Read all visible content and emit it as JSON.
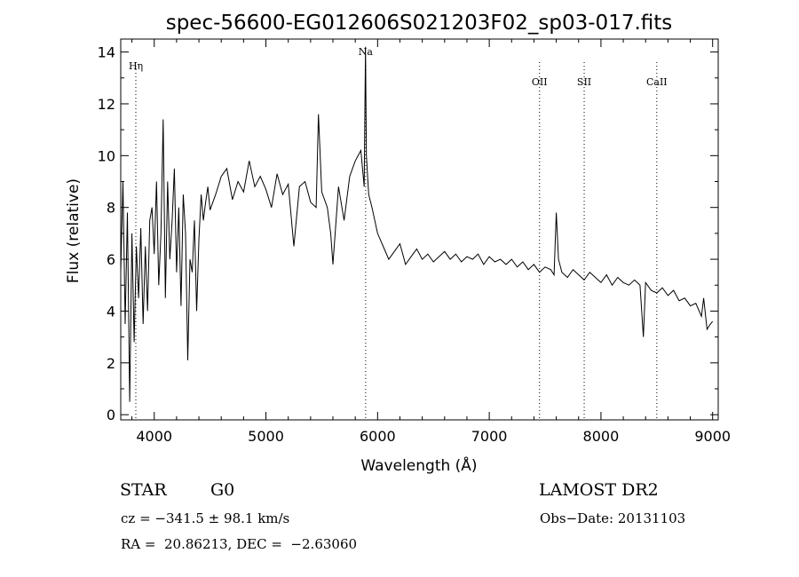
{
  "chart_data": {
    "type": "line",
    "title": "spec-56600-EG012606S021203F02_sp03-017.fits",
    "xlabel": "Wavelength (Å)",
    "ylabel": "Flux (relative)",
    "xlim": [
      3700,
      9050
    ],
    "ylim": [
      -0.2,
      14.5
    ],
    "xticks": [
      4000,
      5000,
      6000,
      7000,
      8000,
      9000
    ],
    "yticks": [
      0,
      2,
      4,
      6,
      8,
      10,
      12,
      14
    ],
    "grid": false,
    "series": [
      {
        "x": [
          3700,
          3720,
          3740,
          3760,
          3780,
          3800,
          3820,
          3840,
          3860,
          3880,
          3900,
          3920,
          3940,
          3960,
          3980,
          4000,
          4020,
          4040,
          4060,
          4080,
          4100,
          4120,
          4140,
          4160,
          4180,
          4200,
          4220,
          4240,
          4260,
          4280,
          4300,
          4320,
          4340,
          4360,
          4380,
          4400,
          4420,
          4440,
          4460,
          4480,
          4500,
          4550,
          4600,
          4650,
          4700,
          4750,
          4800,
          4850,
          4900,
          4950,
          5000,
          5050,
          5100,
          5150,
          5200,
          5250,
          5300,
          5350,
          5400,
          5450,
          5470,
          5500,
          5550,
          5580,
          5600,
          5650,
          5700,
          5750,
          5800,
          5850,
          5880,
          5892,
          5900,
          5920,
          5950,
          6000,
          6050,
          6100,
          6150,
          6200,
          6250,
          6300,
          6350,
          6400,
          6450,
          6500,
          6550,
          6600,
          6650,
          6700,
          6750,
          6800,
          6850,
          6900,
          6950,
          7000,
          7050,
          7100,
          7150,
          7200,
          7250,
          7300,
          7350,
          7400,
          7450,
          7500,
          7550,
          7580,
          7600,
          7620,
          7650,
          7700,
          7750,
          7800,
          7850,
          7900,
          7950,
          8000,
          8050,
          8100,
          8150,
          8200,
          8250,
          8300,
          8350,
          8380,
          8400,
          8450,
          8500,
          8550,
          8600,
          8650,
          8700,
          8750,
          8800,
          8850,
          8900,
          8920,
          8950,
          8980,
          9000
        ],
        "y": [
          5.5,
          9.0,
          3.5,
          7.8,
          0.5,
          7.0,
          2.8,
          6.5,
          4.5,
          7.2,
          3.5,
          6.5,
          4.0,
          7.5,
          8.0,
          6.2,
          9.0,
          5.0,
          7.0,
          11.4,
          4.5,
          9.0,
          6.0,
          7.5,
          9.5,
          5.5,
          8.0,
          4.2,
          8.5,
          7.0,
          2.1,
          6.0,
          5.5,
          7.5,
          4.0,
          6.8,
          8.5,
          7.5,
          8.2,
          8.8,
          7.9,
          8.5,
          9.2,
          9.5,
          8.3,
          9.0,
          8.6,
          9.8,
          8.8,
          9.2,
          8.7,
          8.0,
          9.3,
          8.5,
          8.9,
          6.5,
          8.8,
          9.0,
          8.2,
          8.0,
          11.6,
          8.6,
          8.0,
          7.0,
          5.8,
          8.8,
          7.5,
          9.2,
          9.8,
          10.2,
          8.8,
          14.2,
          10.0,
          8.5,
          8.0,
          7.0,
          6.5,
          6.0,
          6.3,
          6.6,
          5.8,
          6.1,
          6.4,
          6.0,
          6.2,
          5.9,
          6.1,
          6.3,
          6.0,
          6.2,
          5.9,
          6.1,
          6.0,
          6.2,
          5.8,
          6.1,
          5.9,
          6.0,
          5.8,
          6.0,
          5.7,
          5.9,
          5.6,
          5.8,
          5.5,
          5.7,
          5.6,
          5.4,
          7.8,
          6.0,
          5.5,
          5.3,
          5.6,
          5.4,
          5.2,
          5.5,
          5.3,
          5.1,
          5.4,
          5.0,
          5.3,
          5.1,
          5.0,
          5.2,
          5.0,
          3.0,
          5.1,
          4.8,
          4.7,
          4.9,
          4.6,
          4.8,
          4.4,
          4.5,
          4.2,
          4.3,
          3.8,
          4.5,
          3.3,
          3.5,
          3.6
        ]
      }
    ],
    "lines": [
      {
        "label": "Hη",
        "x": 3835
      },
      {
        "label": "Na",
        "x": 5893
      },
      {
        "label": "OII",
        "x": 7450
      },
      {
        "label": "SII",
        "x": 7850
      },
      {
        "label": "CaII",
        "x": 8500
      }
    ]
  },
  "footer": {
    "object_type": "STAR",
    "subclass": "G0",
    "release": "LAMOST DR2",
    "cz": "cz = −341.5 ± 98.1 km/s",
    "obs_date": "Obs−Date: 20131103",
    "coords": "RA =  20.86213, DEC =  −2.63060"
  }
}
